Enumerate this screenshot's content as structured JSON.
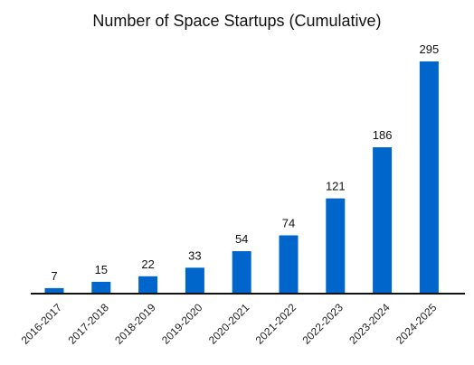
{
  "chart_data": {
    "type": "bar",
    "title": "Number of Space Startups (Cumulative)",
    "xlabel": "",
    "ylabel": "",
    "categories": [
      "2016-2017",
      "2017-2018",
      "2018-2019",
      "2019-2020",
      "2020-2021",
      "2021-2022",
      "2022-2023",
      "2023-2024",
      "2024-2025"
    ],
    "values": [
      7,
      15,
      22,
      33,
      54,
      74,
      121,
      186,
      295
    ],
    "ylim": [
      0,
      295
    ],
    "grid": false,
    "legend": "none",
    "bar_color": "#0066cc",
    "data_labels": true
  }
}
